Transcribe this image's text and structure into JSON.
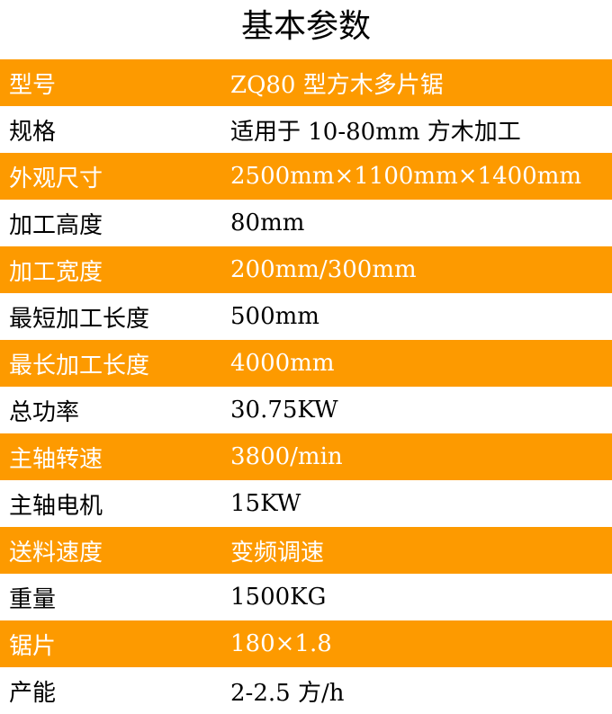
{
  "title": "基本参数",
  "accent": "#fd9a00",
  "rows": [
    {
      "k": "型号",
      "v": "ZQ80 型方木多片锯"
    },
    {
      "k": "规格",
      "v": "适用于 10-80mm 方木加工"
    },
    {
      "k": "外观尺寸",
      "v": "2500mm×1100mm×1400mm"
    },
    {
      "k": "加工高度",
      "v": "80mm"
    },
    {
      "k": "加工宽度",
      "v": "200mm/300mm"
    },
    {
      "k": "最短加工长度",
      "v": "500mm"
    },
    {
      "k": "最长加工长度",
      "v": "4000mm"
    },
    {
      "k": "总功率",
      "v": "30.75KW"
    },
    {
      "k": "主轴转速",
      "v": "3800/min"
    },
    {
      "k": "主轴电机",
      "v": "15KW"
    },
    {
      "k": "送料速度",
      "v": "变频调速"
    },
    {
      "k": "重量",
      "v": "1500KG"
    },
    {
      "k": "锯片",
      "v": "180×1.8"
    },
    {
      "k": "产能",
      "v": "2-2.5 方/h"
    }
  ]
}
